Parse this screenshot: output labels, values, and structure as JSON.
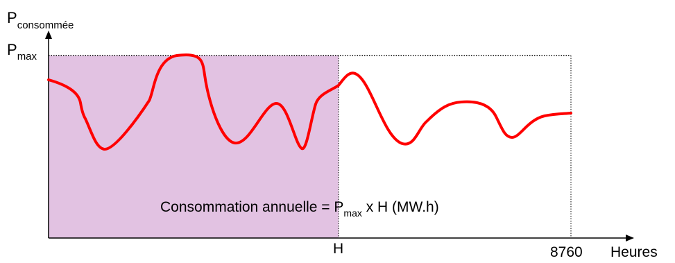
{
  "diagram": {
    "y_axis": {
      "symbol": "P",
      "subscript": "consommée"
    },
    "pmax": {
      "symbol": "P",
      "subscript": "max"
    },
    "x_axis": {
      "h_label": "H",
      "end_label": "8760",
      "unit": "Heures"
    },
    "formula": {
      "before": "Consommation annuelle = P",
      "subscript": "max",
      "after": " x H (MW.h)"
    },
    "colors": {
      "shaded_area": "#e2c2e2",
      "curve": "#ff0000",
      "axes": "#000000",
      "dotted_lines": "#000000"
    }
  }
}
